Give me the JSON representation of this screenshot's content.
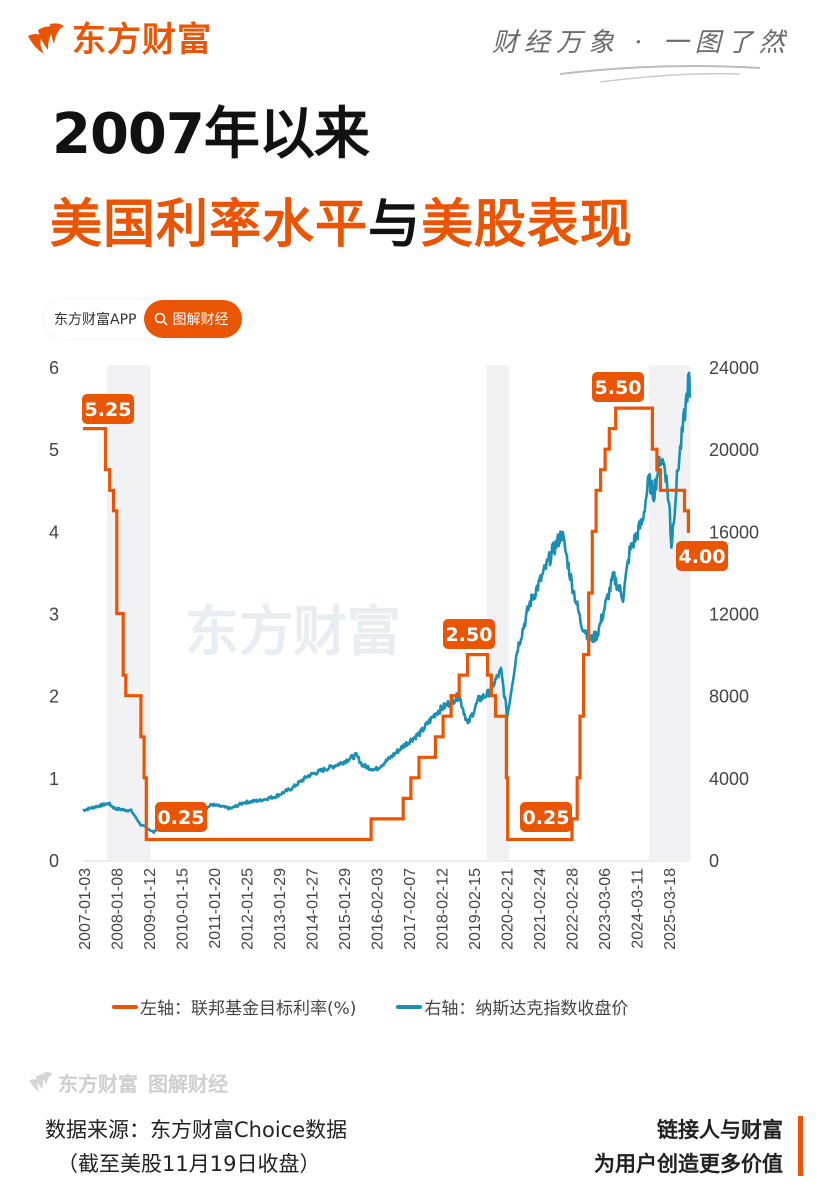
{
  "header": {
    "brand_name": "东方财富",
    "slogan": "财经万象 · 一图了然"
  },
  "title": {
    "line1": "2007年以来",
    "line2_part1": "美国利率水平",
    "line2_connector": "与",
    "line2_part2": "美股表现"
  },
  "app_pill": {
    "label": "东方财富APP",
    "button_label": "图解财经",
    "button_icon": "search-icon"
  },
  "colors": {
    "accent": "#ea5504",
    "nasdaq": "#1a8fb4",
    "band": "#f2f2f4",
    "axis_text": "#444444"
  },
  "chart_data": {
    "type": "line",
    "title": "2007年以来美国利率水平与美股表现",
    "left_axis": {
      "label": "左轴：联邦基金目标利率(%)",
      "ticks": [
        0,
        1,
        2,
        3,
        4,
        5,
        6
      ],
      "ylim": [
        0,
        6
      ]
    },
    "right_axis": {
      "label": "右轴：纳斯达克指数收盘价",
      "ticks": [
        0,
        4000,
        8000,
        12000,
        16000,
        20000,
        24000
      ],
      "ylim": [
        0,
        24000
      ]
    },
    "x_tick_labels": [
      "2007-01-03",
      "2008-01-08",
      "2009-01-12",
      "2010-01-15",
      "2011-01-20",
      "2012-01-25",
      "2013-01-29",
      "2014-01-27",
      "2015-01-29",
      "2016-02-03",
      "2017-02-07",
      "2018-02-12",
      "2019-02-15",
      "2020-02-21",
      "2021-02-24",
      "2022-02-28",
      "2023-03-06",
      "2024-03-11",
      "2025-03-18"
    ],
    "shaded_bands": [
      {
        "start": 2007.75,
        "end": 2009.1
      },
      {
        "start": 2019.55,
        "end": 2020.25
      },
      {
        "start": 2024.6,
        "end": 2025.9
      }
    ],
    "annotations": [
      {
        "text": "5.25",
        "x": 2007.0,
        "y": 5.25
      },
      {
        "text": "0.25",
        "x": 2009.2,
        "y": 0.25
      },
      {
        "text": "2.50",
        "x": 2018.6,
        "y": 2.5
      },
      {
        "text": "0.25",
        "x": 2020.6,
        "y": 0.25
      },
      {
        "text": "5.50",
        "x": 2023.6,
        "y": 5.5
      },
      {
        "text": "4.00",
        "x": 2025.9,
        "y": 4.0
      }
    ],
    "series": [
      {
        "name": "左轴：联邦基金目标利率(%)",
        "axis": "left",
        "step": true,
        "points": [
          [
            2007.0,
            5.25
          ],
          [
            2007.7,
            4.75
          ],
          [
            2007.83,
            4.5
          ],
          [
            2007.95,
            4.25
          ],
          [
            2008.05,
            3.0
          ],
          [
            2008.08,
            3.0
          ],
          [
            2008.25,
            2.25
          ],
          [
            2008.33,
            2.0
          ],
          [
            2008.8,
            1.5
          ],
          [
            2008.9,
            1.0
          ],
          [
            2008.97,
            0.25
          ],
          [
            2015.96,
            0.5
          ],
          [
            2016.96,
            0.75
          ],
          [
            2017.2,
            1.0
          ],
          [
            2017.45,
            1.25
          ],
          [
            2017.96,
            1.5
          ],
          [
            2018.2,
            1.75
          ],
          [
            2018.45,
            2.0
          ],
          [
            2018.7,
            2.25
          ],
          [
            2018.96,
            2.5
          ],
          [
            2019.58,
            2.25
          ],
          [
            2019.7,
            2.0
          ],
          [
            2019.83,
            1.75
          ],
          [
            2020.17,
            1.0
          ],
          [
            2020.21,
            0.25
          ],
          [
            2022.21,
            0.5
          ],
          [
            2022.37,
            1.0
          ],
          [
            2022.46,
            1.75
          ],
          [
            2022.57,
            2.5
          ],
          [
            2022.73,
            3.25
          ],
          [
            2022.84,
            4.0
          ],
          [
            2022.96,
            4.5
          ],
          [
            2023.1,
            4.75
          ],
          [
            2023.24,
            5.0
          ],
          [
            2023.37,
            5.25
          ],
          [
            2023.57,
            5.5
          ],
          [
            2024.71,
            5.0
          ],
          [
            2024.85,
            4.75
          ],
          [
            2024.96,
            4.5
          ],
          [
            2025.71,
            4.25
          ],
          [
            2025.83,
            4.0
          ],
          [
            2025.88,
            4.0
          ]
        ]
      },
      {
        "name": "右轴：纳斯达克指数收盘价",
        "axis": "right",
        "step": false,
        "points": [
          [
            2007.0,
            2420
          ],
          [
            2007.4,
            2600
          ],
          [
            2007.8,
            2750
          ],
          [
            2008.0,
            2500
          ],
          [
            2008.5,
            2400
          ],
          [
            2008.8,
            1700
          ],
          [
            2009.0,
            1550
          ],
          [
            2009.2,
            1350
          ],
          [
            2009.5,
            1900
          ],
          [
            2010.0,
            2250
          ],
          [
            2010.5,
            2150
          ],
          [
            2011.0,
            2700
          ],
          [
            2011.6,
            2500
          ],
          [
            2012.0,
            2800
          ],
          [
            2012.5,
            2900
          ],
          [
            2013.0,
            3100
          ],
          [
            2013.5,
            3500
          ],
          [
            2014.0,
            4100
          ],
          [
            2014.5,
            4400
          ],
          [
            2015.0,
            4700
          ],
          [
            2015.5,
            5100
          ],
          [
            2015.7,
            4600
          ],
          [
            2016.1,
            4400
          ],
          [
            2016.5,
            4900
          ],
          [
            2017.0,
            5600
          ],
          [
            2017.5,
            6200
          ],
          [
            2018.0,
            7200
          ],
          [
            2018.7,
            8000
          ],
          [
            2018.97,
            6600
          ],
          [
            2019.3,
            7800
          ],
          [
            2019.6,
            8100
          ],
          [
            2020.0,
            9200
          ],
          [
            2020.2,
            7000
          ],
          [
            2020.5,
            10200
          ],
          [
            2020.9,
            12500
          ],
          [
            2021.2,
            13500
          ],
          [
            2021.6,
            15000
          ],
          [
            2021.9,
            15900
          ],
          [
            2022.2,
            13500
          ],
          [
            2022.5,
            11500
          ],
          [
            2022.8,
            10700
          ],
          [
            2023.0,
            11000
          ],
          [
            2023.5,
            13800
          ],
          [
            2023.8,
            12800
          ],
          [
            2024.0,
            15000
          ],
          [
            2024.4,
            16500
          ],
          [
            2024.6,
            18500
          ],
          [
            2024.75,
            17800
          ],
          [
            2024.95,
            19600
          ],
          [
            2025.1,
            19200
          ],
          [
            2025.25,
            17000
          ],
          [
            2025.3,
            15300
          ],
          [
            2025.5,
            19000
          ],
          [
            2025.7,
            21500
          ],
          [
            2025.85,
            23500
          ],
          [
            2025.88,
            22500
          ]
        ]
      }
    ],
    "legend_position": "bottom",
    "grid": false
  },
  "legend": {
    "items": [
      {
        "label": "左轴：联邦基金目标利率(%)",
        "color": "#ea5504"
      },
      {
        "label": "右轴：纳斯达克指数收盘价",
        "color": "#1a8fb4"
      }
    ]
  },
  "footer": {
    "watermark_brand": "东方财富",
    "watermark_section": "图解财经",
    "source_line1": "数据来源：东方财富Choice数据",
    "source_line2": "（截至美股11月19日收盘）",
    "tagline_line1": "链接人与财富",
    "tagline_line2": "为用户创造更多价值"
  }
}
